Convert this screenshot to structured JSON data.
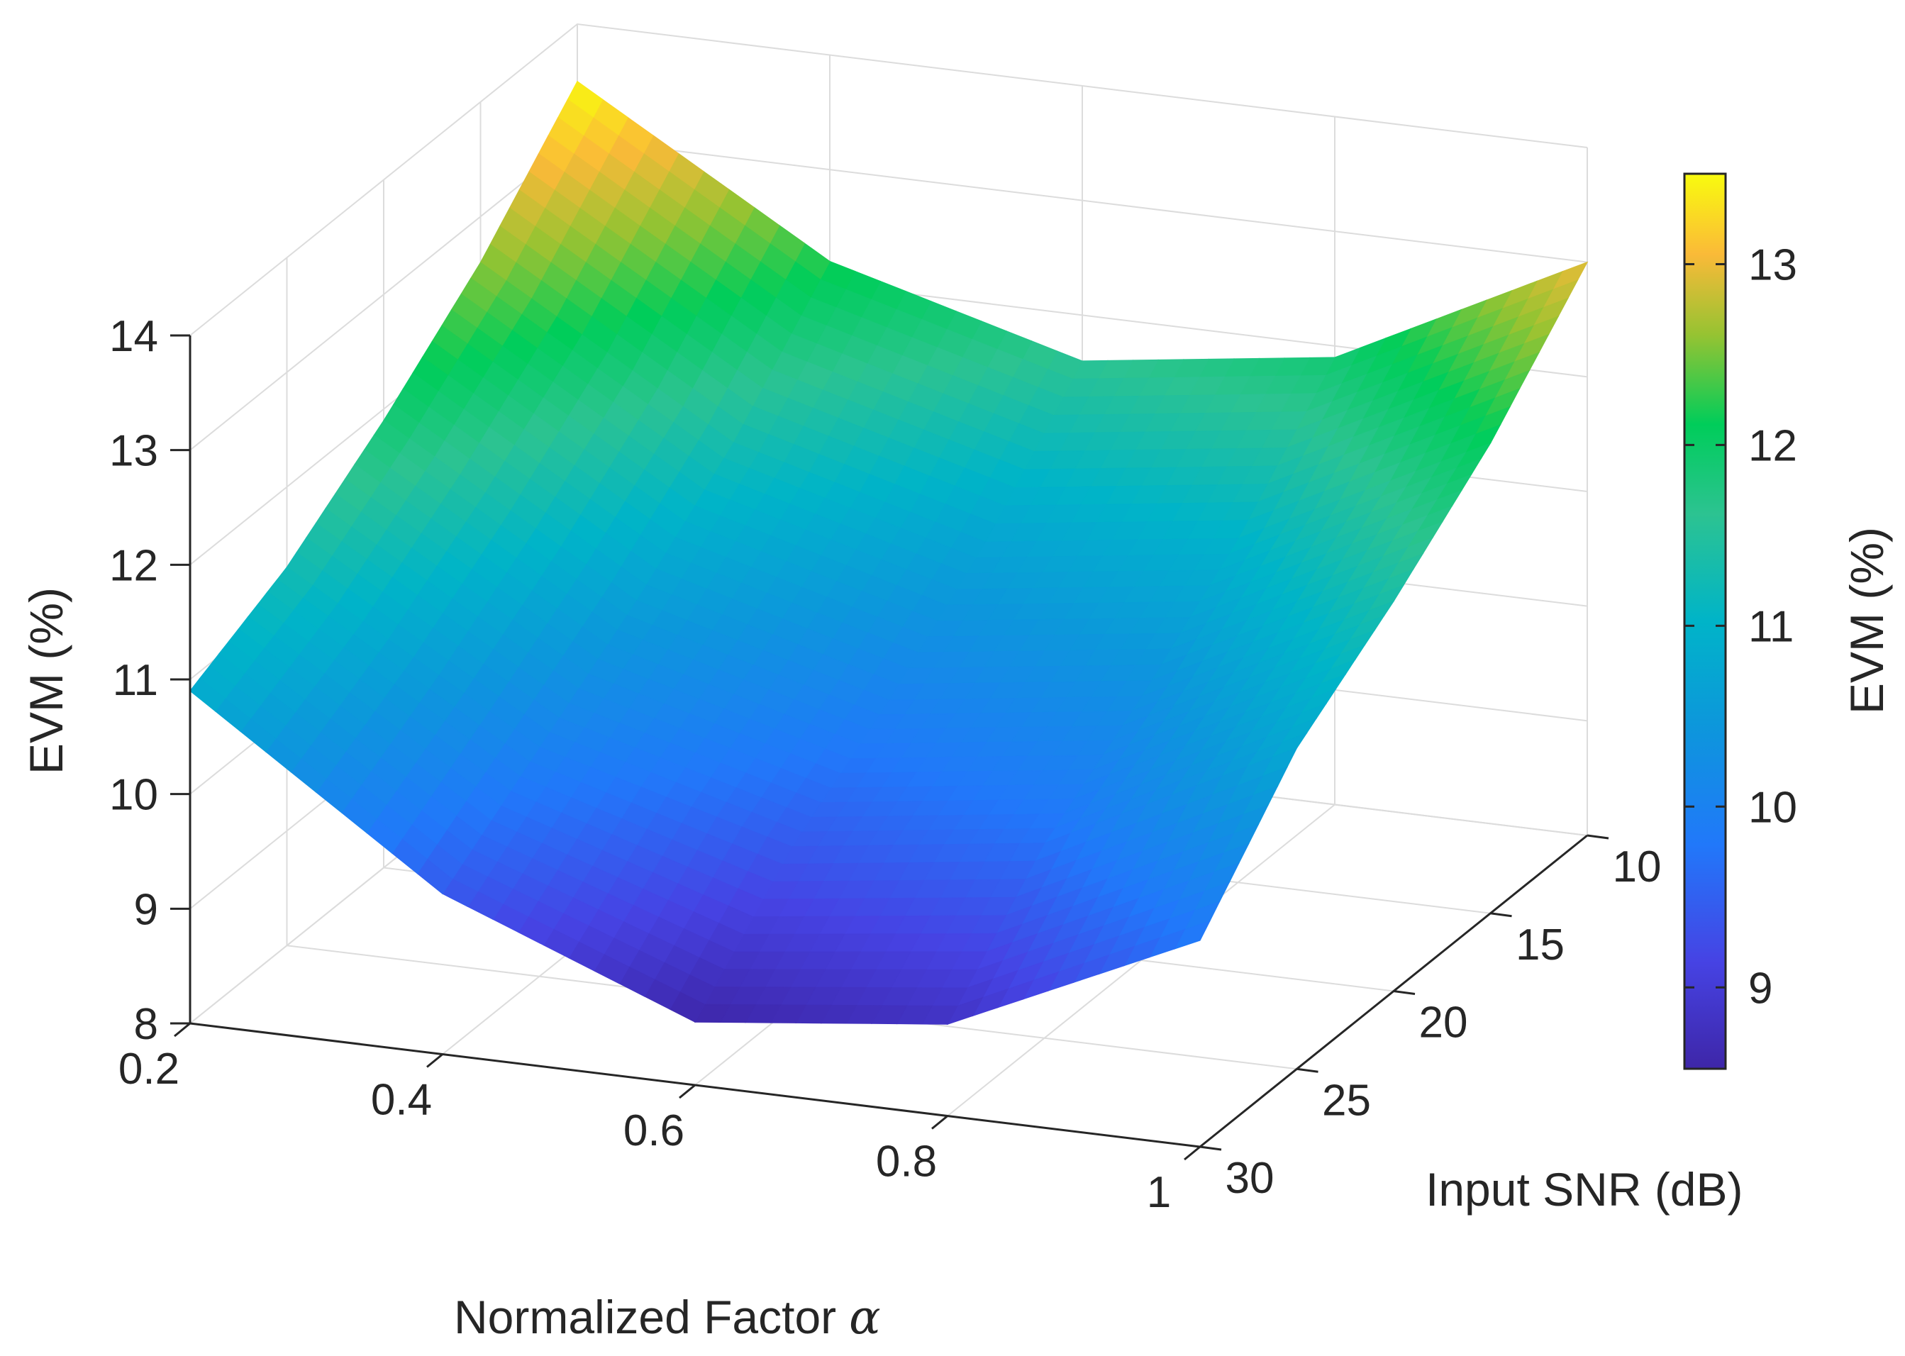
{
  "chart_data": {
    "type": "surface",
    "xlabel": "Normalized Factor",
    "xlabel_symbol": "α",
    "ylabel": "Input SNR (dB)",
    "zlabel": "EVM (%)",
    "colorbar_label": "EVM (%)",
    "colormap": "parula",
    "grid": true,
    "xlim": [
      0.2,
      1
    ],
    "ylim": [
      10,
      30
    ],
    "zlim": [
      8,
      14
    ],
    "x_ticks": [
      "0.2",
      "0.4",
      "0.6",
      "0.8",
      "1"
    ],
    "y_ticks": [
      "10",
      "15",
      "20",
      "25",
      "30"
    ],
    "z_ticks": [
      "8",
      "9",
      "10",
      "11",
      "12",
      "13",
      "14"
    ],
    "colorbar_range": [
      8.55,
      13.5
    ],
    "colorbar_ticks": [
      "9",
      "10",
      "11",
      "12",
      "13"
    ],
    "x": [
      0.2,
      0.4,
      0.6,
      0.8,
      1.0
    ],
    "y": [
      10,
      15,
      20,
      25,
      30
    ],
    "z": [
      [
        13.5,
        12.2,
        11.6,
        11.9,
        13.0
      ],
      [
        12.6,
        11.3,
        10.7,
        11.0,
        12.1
      ],
      [
        11.9,
        10.6,
        10.0,
        10.3,
        11.4
      ],
      [
        11.3,
        10.0,
        9.4,
        9.7,
        10.8
      ],
      [
        10.9,
        9.4,
        8.55,
        8.8,
        9.8
      ]
    ]
  }
}
